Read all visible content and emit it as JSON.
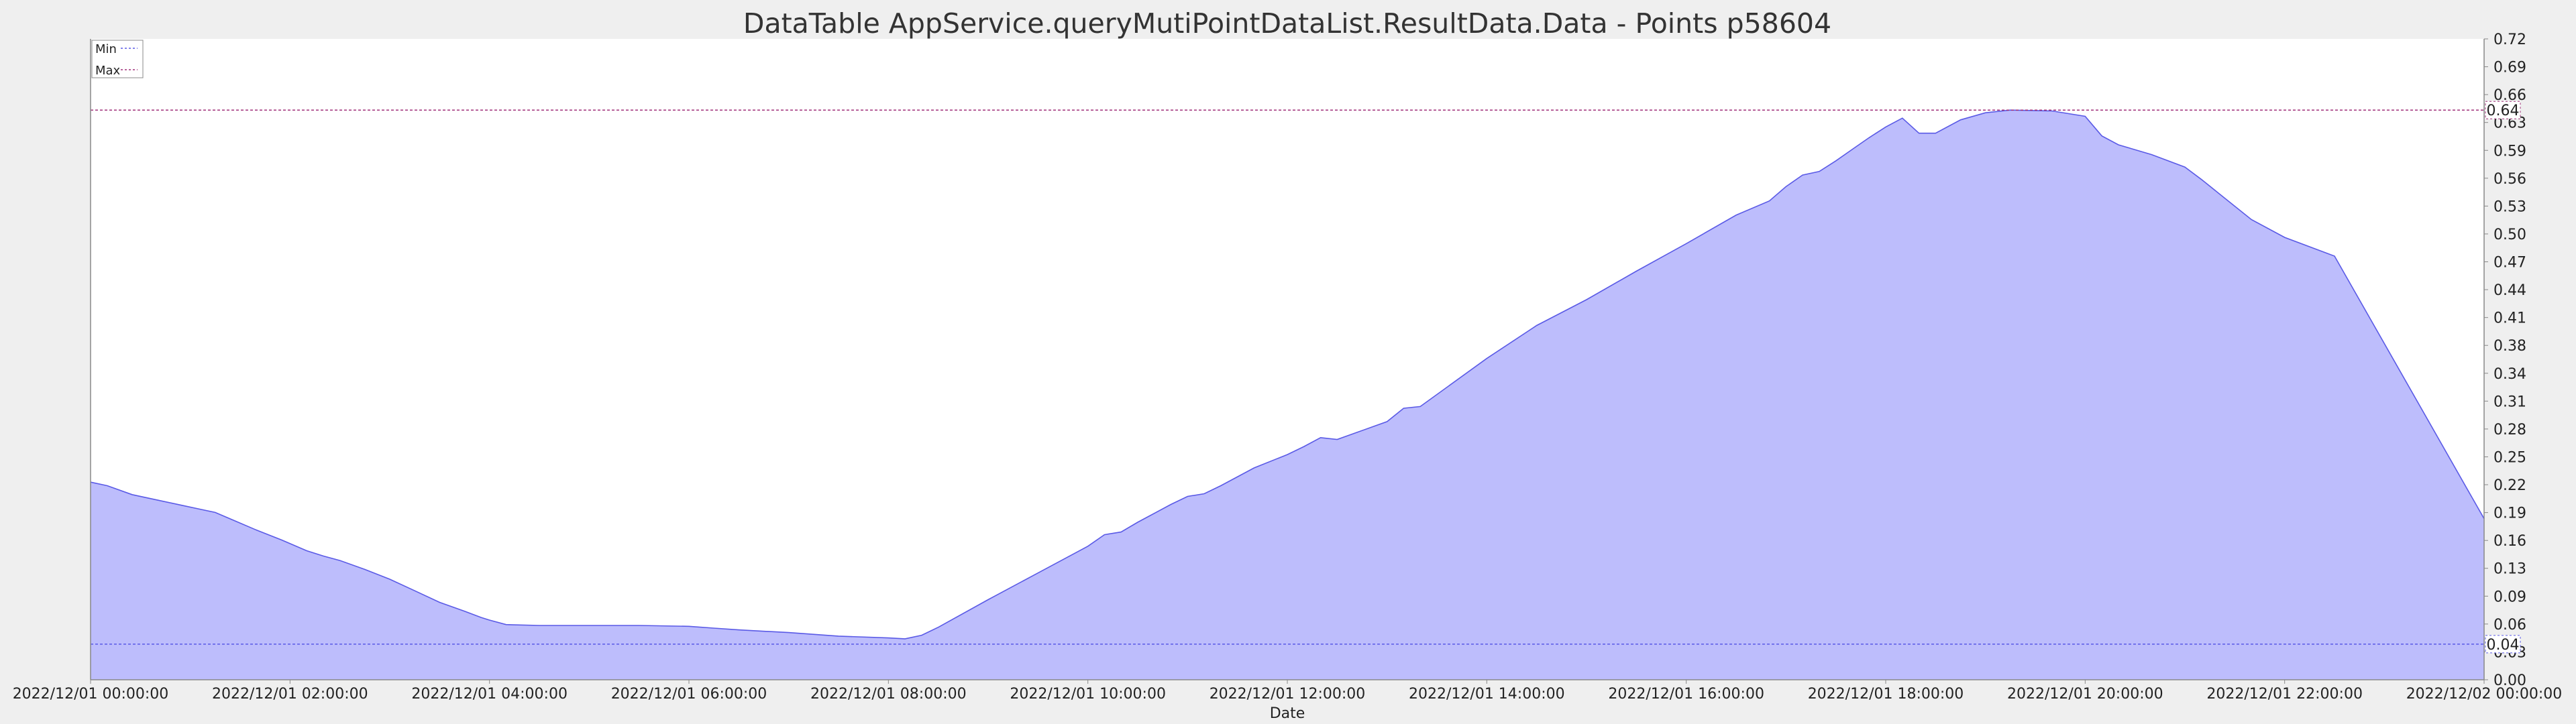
{
  "chart_data": {
    "type": "area",
    "title": "DataTable AppService.queryMutiPointDataList.ResultData.Data - Points p58604",
    "xlabel": "Date",
    "ylabel": "",
    "x_ticks": [
      "2022/12/01 00:00:00",
      "2022/12/01 02:00:00",
      "2022/12/01 04:00:00",
      "2022/12/01 06:00:00",
      "2022/12/01 08:00:00",
      "2022/12/01 10:00:00",
      "2022/12/01 12:00:00",
      "2022/12/01 14:00:00",
      "2022/12/01 16:00:00",
      "2022/12/01 18:00:00",
      "2022/12/01 20:00:00",
      "2022/12/01 22:00:00",
      "2022/12/02 00:00:00"
    ],
    "y_ticks": [
      "0.00",
      "0.03",
      "0.06",
      "0.09",
      "0.13",
      "0.16",
      "0.19",
      "0.22",
      "0.25",
      "0.28",
      "0.31",
      "0.34",
      "0.38",
      "0.41",
      "0.44",
      "0.47",
      "0.50",
      "0.53",
      "0.56",
      "0.59",
      "0.63",
      "0.66",
      "0.69",
      "0.72"
    ],
    "ylim": [
      0,
      0.72
    ],
    "xlim": [
      "2022/12/01 00:00:00",
      "2022/12/02 00:00:00"
    ],
    "grid": false,
    "legend_position": "top-left",
    "series": [
      {
        "name": "",
        "color": "#bdbdfc",
        "line_color": "#5a5ae6",
        "points": [
          {
            "x": "2022/12/01 00:00:00",
            "y": 0.222
          },
          {
            "x": "2022/12/01 00:10:00",
            "y": 0.218
          },
          {
            "x": "2022/12/01 00:25:00",
            "y": 0.208
          },
          {
            "x": "2022/12/01 00:40:00",
            "y": 0.202
          },
          {
            "x": "2022/12/01 00:55:00",
            "y": 0.196
          },
          {
            "x": "2022/12/01 01:05:00",
            "y": 0.192
          },
          {
            "x": "2022/12/01 01:15:00",
            "y": 0.188
          },
          {
            "x": "2022/12/01 01:25:00",
            "y": 0.18
          },
          {
            "x": "2022/12/01 01:40:00",
            "y": 0.168
          },
          {
            "x": "2022/12/01 01:55:00",
            "y": 0.157
          },
          {
            "x": "2022/12/01 02:10:00",
            "y": 0.145
          },
          {
            "x": "2022/12/01 02:20:00",
            "y": 0.139
          },
          {
            "x": "2022/12/01 02:30:00",
            "y": 0.134
          },
          {
            "x": "2022/12/01 02:45:00",
            "y": 0.124
          },
          {
            "x": "2022/12/01 03:00:00",
            "y": 0.113
          },
          {
            "x": "2022/12/01 03:15:00",
            "y": 0.1
          },
          {
            "x": "2022/12/01 03:30:00",
            "y": 0.087
          },
          {
            "x": "2022/12/01 03:45:00",
            "y": 0.077
          },
          {
            "x": "2022/12/01 03:55:00",
            "y": 0.07
          },
          {
            "x": "2022/12/01 04:00:00",
            "y": 0.067
          },
          {
            "x": "2022/12/01 04:10:00",
            "y": 0.062
          },
          {
            "x": "2022/12/01 04:30:00",
            "y": 0.061
          },
          {
            "x": "2022/12/01 05:00:00",
            "y": 0.061
          },
          {
            "x": "2022/12/01 05:30:00",
            "y": 0.061
          },
          {
            "x": "2022/12/01 06:00:00",
            "y": 0.06
          },
          {
            "x": "2022/12/01 06:15:00",
            "y": 0.058
          },
          {
            "x": "2022/12/01 06:30:00",
            "y": 0.056
          },
          {
            "x": "2022/12/01 07:00:00",
            "y": 0.053
          },
          {
            "x": "2022/12/01 07:30:00",
            "y": 0.049
          },
          {
            "x": "2022/12/01 08:00:00",
            "y": 0.047
          },
          {
            "x": "2022/12/01 08:10:00",
            "y": 0.046
          },
          {
            "x": "2022/12/01 08:20:00",
            "y": 0.05
          },
          {
            "x": "2022/12/01 08:30:00",
            "y": 0.059
          },
          {
            "x": "2022/12/01 09:00:00",
            "y": 0.09
          },
          {
            "x": "2022/12/01 09:30:00",
            "y": 0.12
          },
          {
            "x": "2022/12/01 10:00:00",
            "y": 0.15
          },
          {
            "x": "2022/12/01 10:10:00",
            "y": 0.163
          },
          {
            "x": "2022/12/01 10:20:00",
            "y": 0.166
          },
          {
            "x": "2022/12/01 10:30:00",
            "y": 0.177
          },
          {
            "x": "2022/12/01 10:50:00",
            "y": 0.197
          },
          {
            "x": "2022/12/01 11:00:00",
            "y": 0.206
          },
          {
            "x": "2022/12/01 11:10:00",
            "y": 0.209
          },
          {
            "x": "2022/12/01 11:20:00",
            "y": 0.218
          },
          {
            "x": "2022/12/01 11:40:00",
            "y": 0.238
          },
          {
            "x": "2022/12/01 12:00:00",
            "y": 0.253
          },
          {
            "x": "2022/12/01 12:10:00",
            "y": 0.262
          },
          {
            "x": "2022/12/01 12:20:00",
            "y": 0.272
          },
          {
            "x": "2022/12/01 12:30:00",
            "y": 0.27
          },
          {
            "x": "2022/12/01 13:00:00",
            "y": 0.29
          },
          {
            "x": "2022/12/01 13:10:00",
            "y": 0.305
          },
          {
            "x": "2022/12/01 13:20:00",
            "y": 0.307
          },
          {
            "x": "2022/12/01 14:00:00",
            "y": 0.361
          },
          {
            "x": "2022/12/01 14:30:00",
            "y": 0.398
          },
          {
            "x": "2022/12/01 15:00:00",
            "y": 0.427
          },
          {
            "x": "2022/12/01 15:30:00",
            "y": 0.459
          },
          {
            "x": "2022/12/01 16:00:00",
            "y": 0.49
          },
          {
            "x": "2022/12/01 16:30:00",
            "y": 0.522
          },
          {
            "x": "2022/12/01 16:50:00",
            "y": 0.538
          },
          {
            "x": "2022/12/01 17:00:00",
            "y": 0.554
          },
          {
            "x": "2022/12/01 17:10:00",
            "y": 0.567
          },
          {
            "x": "2022/12/01 17:20:00",
            "y": 0.571
          },
          {
            "x": "2022/12/01 17:30:00",
            "y": 0.583
          },
          {
            "x": "2022/12/01 17:40:00",
            "y": 0.596
          },
          {
            "x": "2022/12/01 17:50:00",
            "y": 0.609
          },
          {
            "x": "2022/12/01 18:00:00",
            "y": 0.621
          },
          {
            "x": "2022/12/01 18:10:00",
            "y": 0.631
          },
          {
            "x": "2022/12/01 18:20:00",
            "y": 0.614
          },
          {
            "x": "2022/12/01 18:30:00",
            "y": 0.614
          },
          {
            "x": "2022/12/01 18:45:00",
            "y": 0.629
          },
          {
            "x": "2022/12/01 19:00:00",
            "y": 0.637
          },
          {
            "x": "2022/12/01 19:15:00",
            "y": 0.64
          },
          {
            "x": "2022/12/01 19:40:00",
            "y": 0.639
          },
          {
            "x": "2022/12/01 20:00:00",
            "y": 0.633
          },
          {
            "x": "2022/12/01 20:10:00",
            "y": 0.611
          },
          {
            "x": "2022/12/01 20:20:00",
            "y": 0.601
          },
          {
            "x": "2022/12/01 20:40:00",
            "y": 0.59
          },
          {
            "x": "2022/12/01 21:00:00",
            "y": 0.576
          },
          {
            "x": "2022/12/01 21:10:00",
            "y": 0.562
          },
          {
            "x": "2022/12/01 21:20:00",
            "y": 0.547
          },
          {
            "x": "2022/12/01 21:40:00",
            "y": 0.517
          },
          {
            "x": "2022/12/01 22:00:00",
            "y": 0.497
          },
          {
            "x": "2022/12/01 22:30:00",
            "y": 0.476
          },
          {
            "x": "2022/12/02 00:00:00",
            "y": 0.181
          }
        ]
      }
    ],
    "reference_lines": [
      {
        "name": "Min",
        "value": 0.04,
        "label": "0.04",
        "color": "#5a5ae6"
      },
      {
        "name": "Max",
        "value": 0.64,
        "label": "0.64",
        "color": "#a0307a"
      }
    ]
  }
}
